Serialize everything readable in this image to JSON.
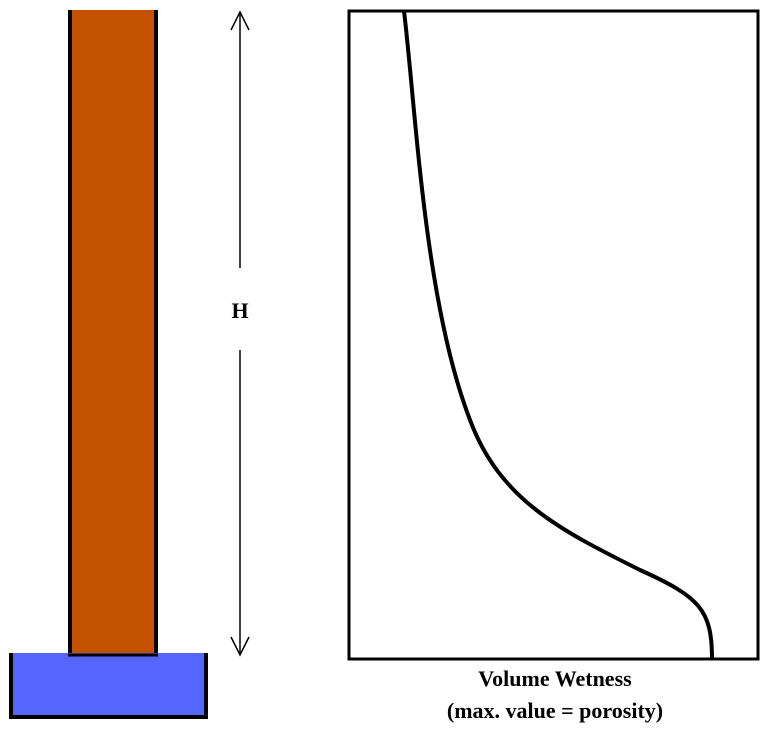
{
  "height_label": "H",
  "x_axis_label": {
    "line1": "Volume Wetness",
    "line2": "(max. value = porosity)"
  }
}
